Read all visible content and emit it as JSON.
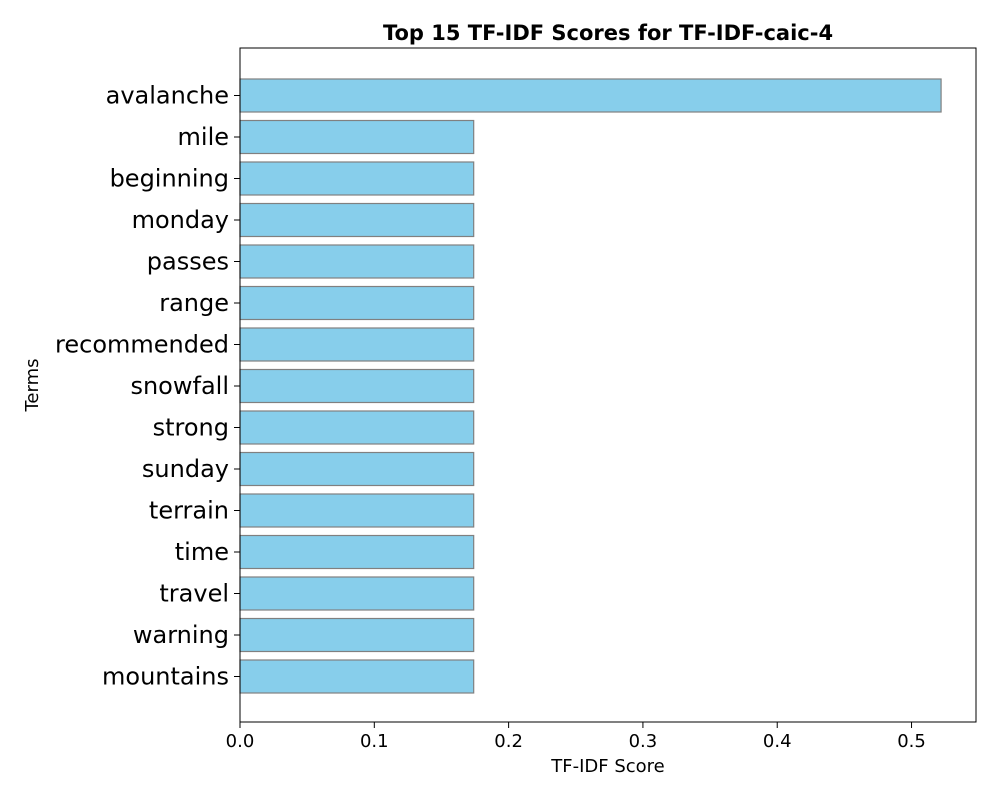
{
  "chart_data": {
    "type": "bar",
    "orientation": "horizontal",
    "title": "Top 15 TF-IDF Scores for TF-IDF-caic-4",
    "xlabel": "TF-IDF Score",
    "ylabel": "Terms",
    "categories": [
      "avalanche",
      "mile",
      "beginning",
      "monday",
      "passes",
      "range",
      "recommended",
      "snowfall",
      "strong",
      "sunday",
      "terrain",
      "time",
      "travel",
      "warning",
      "mountains"
    ],
    "values": [
      0.522,
      0.174,
      0.174,
      0.174,
      0.174,
      0.174,
      0.174,
      0.174,
      0.174,
      0.174,
      0.174,
      0.174,
      0.174,
      0.174,
      0.174
    ],
    "xlim": [
      0,
      0.548
    ],
    "xticks": [
      0.0,
      0.1,
      0.2,
      0.3,
      0.4,
      0.5
    ],
    "xtick_labels": [
      "0.0",
      "0.1",
      "0.2",
      "0.3",
      "0.4",
      "0.5"
    ],
    "grid": false,
    "bar_color": "#87ceeb",
    "bar_edge_color": "#808080"
  }
}
